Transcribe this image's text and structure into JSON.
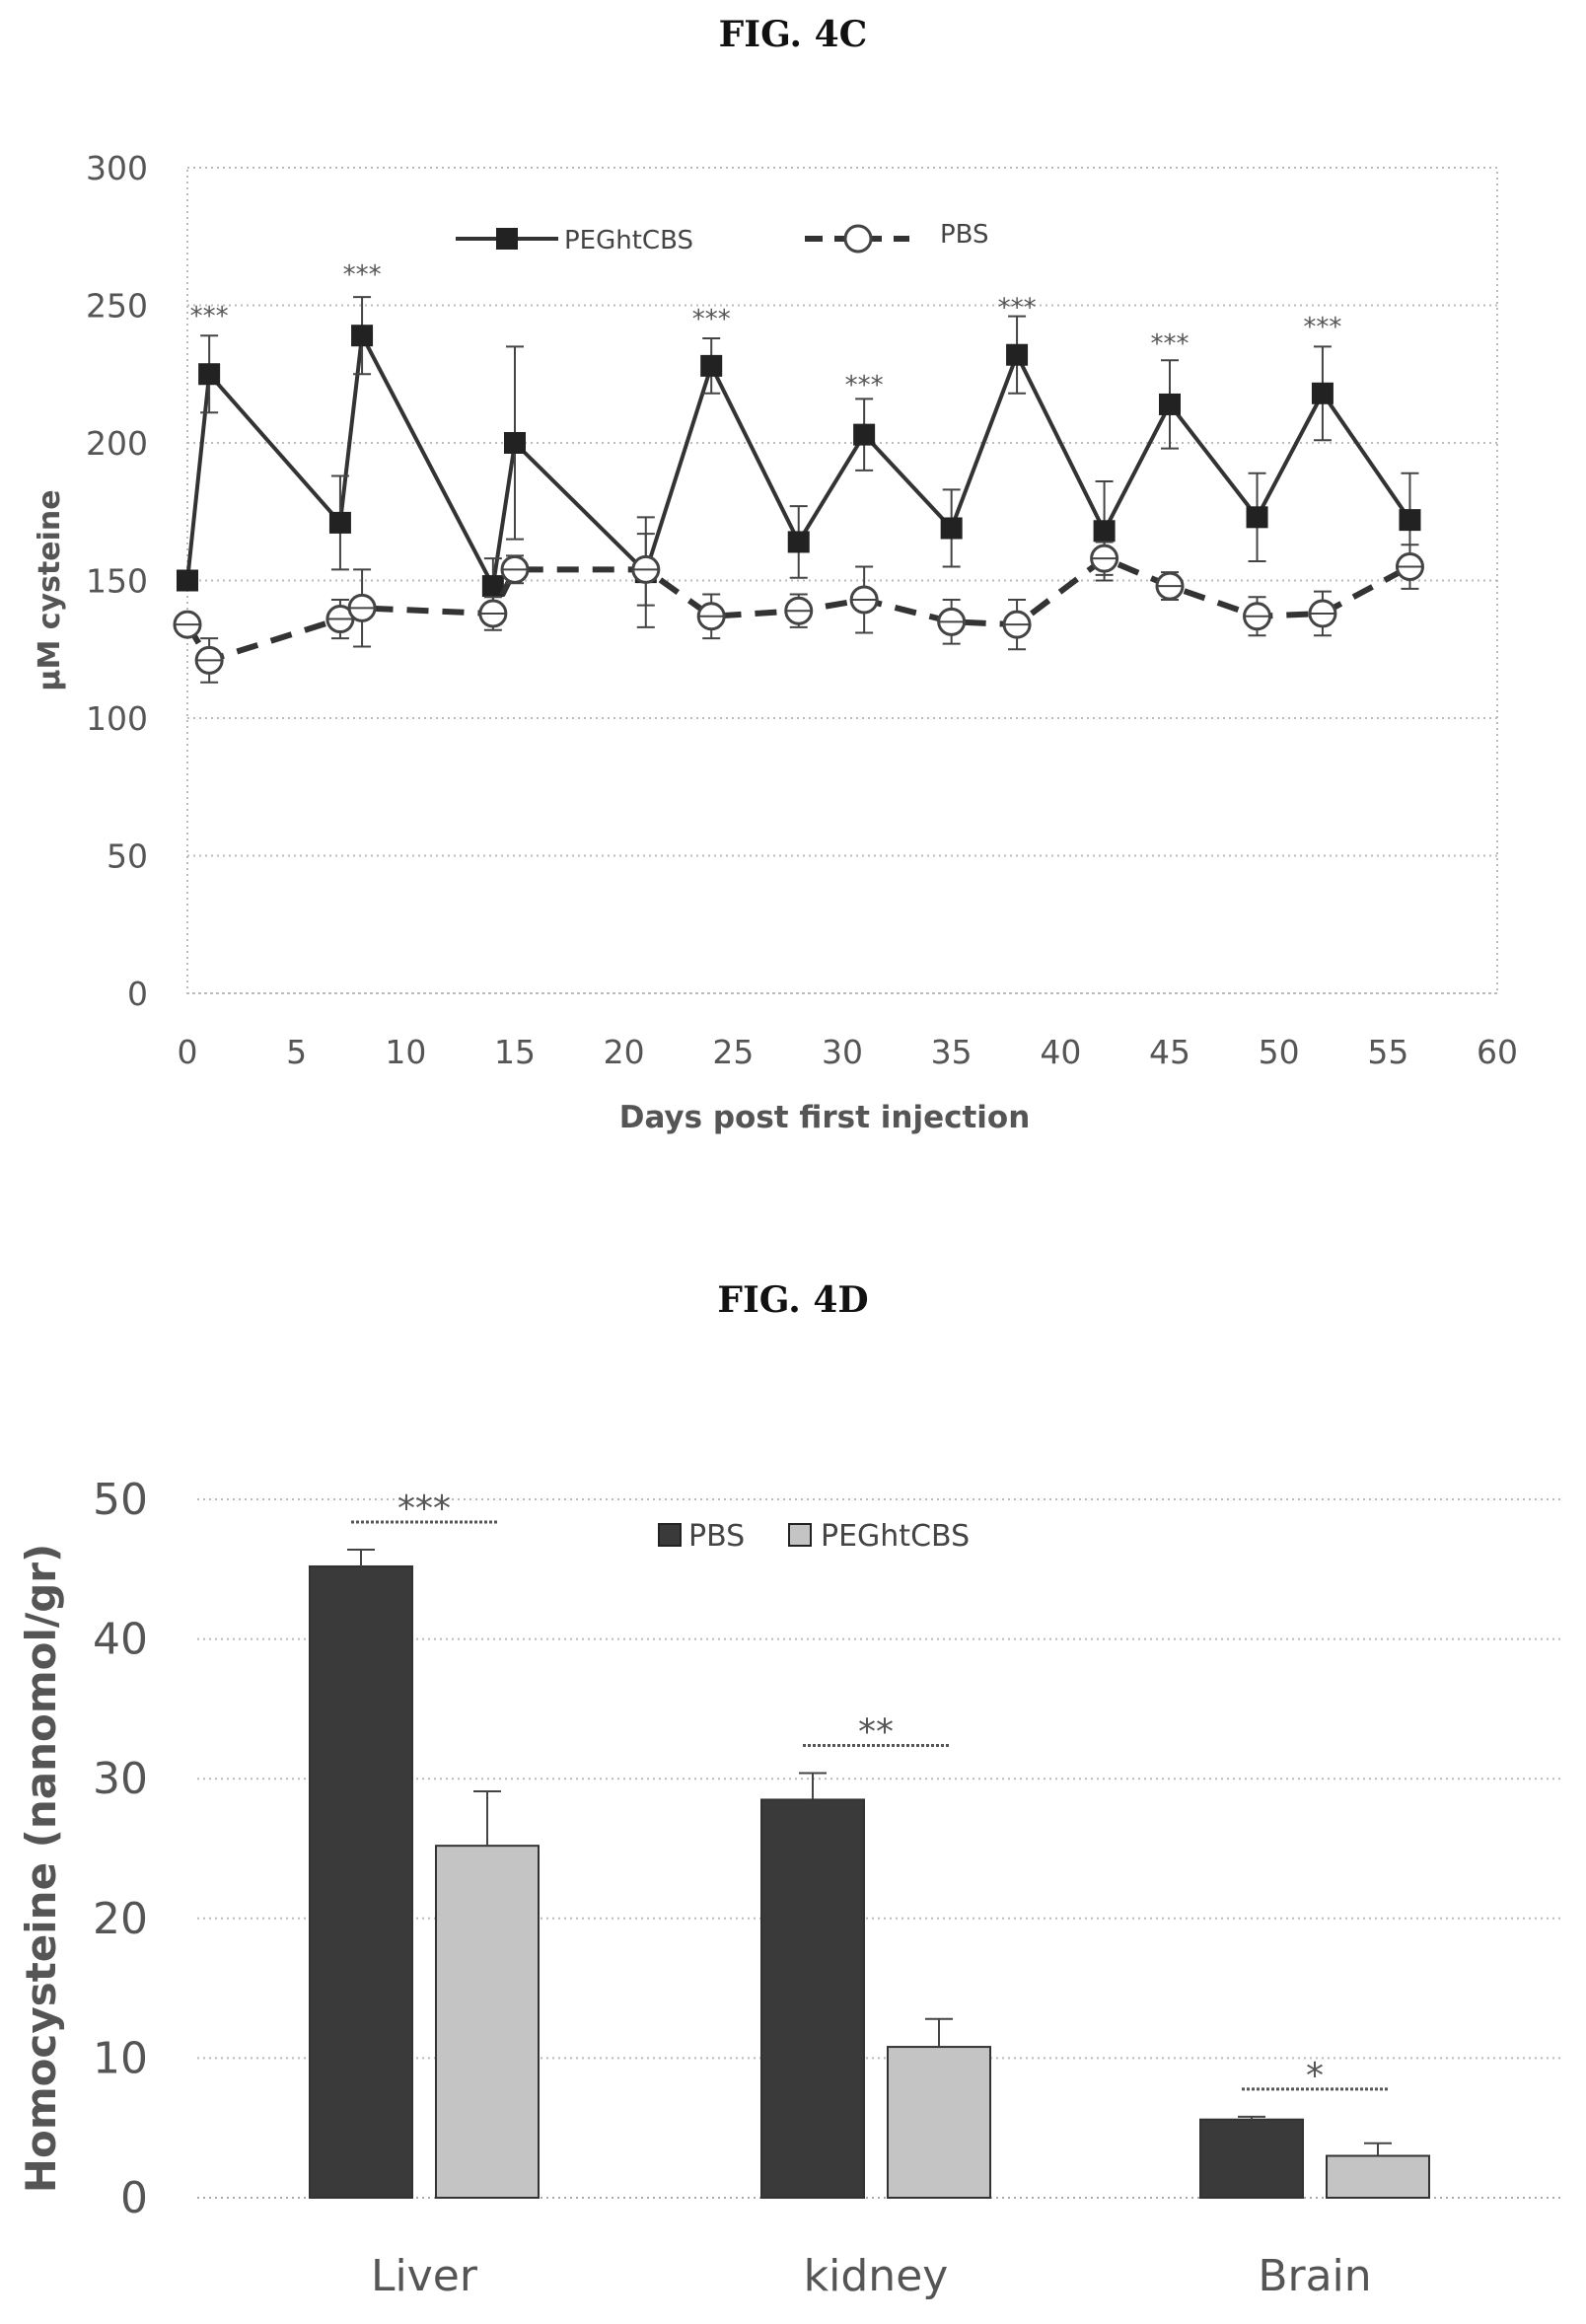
{
  "figure_titles": [
    "FIG. 4C",
    "FIG. 4D"
  ],
  "chart_data": [
    {
      "type": "line",
      "title": "FIG. 4C",
      "xlabel": "Days post first injection",
      "ylabel": "μM cysteine",
      "xlim": [
        0,
        60
      ],
      "ylim": [
        0,
        300
      ],
      "xticks": [
        0,
        5,
        10,
        15,
        20,
        25,
        30,
        35,
        40,
        45,
        50,
        55,
        60
      ],
      "yticks": [
        0,
        50,
        100,
        150,
        200,
        250,
        300
      ],
      "grid": "horizontal dotted",
      "legend_position": "top",
      "series": [
        {
          "name": "PEGhtCBS",
          "style": "solid line, filled square markers",
          "color": "#333333",
          "x": [
            0,
            1,
            7,
            8,
            14,
            15,
            21,
            24,
            28,
            31,
            35,
            38,
            42,
            45,
            49,
            52,
            56
          ],
          "y": [
            150,
            225,
            171,
            239,
            148,
            200,
            153,
            228,
            164,
            203,
            169,
            232,
            168,
            214,
            173,
            218,
            172
          ],
          "err": [
            0,
            14,
            17,
            14,
            10,
            35,
            20,
            10,
            13,
            13,
            14,
            14,
            18,
            16,
            16,
            17,
            17
          ]
        },
        {
          "name": "PBS",
          "style": "dashed line, open circle markers",
          "color": "#333333",
          "x": [
            0,
            1,
            7,
            8,
            14,
            15,
            21,
            24,
            28,
            31,
            35,
            38,
            42,
            45,
            49,
            52,
            56
          ],
          "y": [
            134,
            121,
            136,
            140,
            138,
            154,
            154,
            137,
            139,
            143,
            135,
            134,
            158,
            148,
            137,
            138,
            155
          ],
          "err": [
            0,
            8,
            7,
            14,
            6,
            5,
            13,
            8,
            6,
            12,
            8,
            9,
            6,
            5,
            7,
            8,
            8
          ]
        }
      ],
      "annotations": [
        {
          "text": "***",
          "x": 1,
          "y": 243
        },
        {
          "text": "***",
          "x": 8,
          "y": 258
        },
        {
          "text": "***",
          "x": 24,
          "y": 242
        },
        {
          "text": "***",
          "x": 31,
          "y": 218
        },
        {
          "text": "***",
          "x": 38,
          "y": 246
        },
        {
          "text": "***",
          "x": 45,
          "y": 233
        },
        {
          "text": "***",
          "x": 52,
          "y": 239
        }
      ]
    },
    {
      "type": "bar",
      "title": "FIG. 4D",
      "xlabel": "",
      "ylabel": "Homocysteine (nanomol/gr)",
      "categories": [
        "Liver",
        "kidney",
        "Brain"
      ],
      "ylim": [
        0,
        50
      ],
      "yticks": [
        0,
        10,
        20,
        30,
        40,
        50
      ],
      "grid": "horizontal dotted",
      "legend_position": "top",
      "series": [
        {
          "name": "PBS",
          "color": "#3a3a3a",
          "values": [
            45.2,
            28.5,
            5.6
          ],
          "err": [
            1.2,
            1.9,
            0.2
          ]
        },
        {
          "name": "PEGhtCBS",
          "color": "#c4c4c4",
          "values": [
            25.2,
            10.8,
            3.0
          ],
          "err": [
            3.9,
            2.0,
            0.9
          ]
        }
      ],
      "significance": [
        "***",
        "**",
        "*"
      ]
    }
  ]
}
